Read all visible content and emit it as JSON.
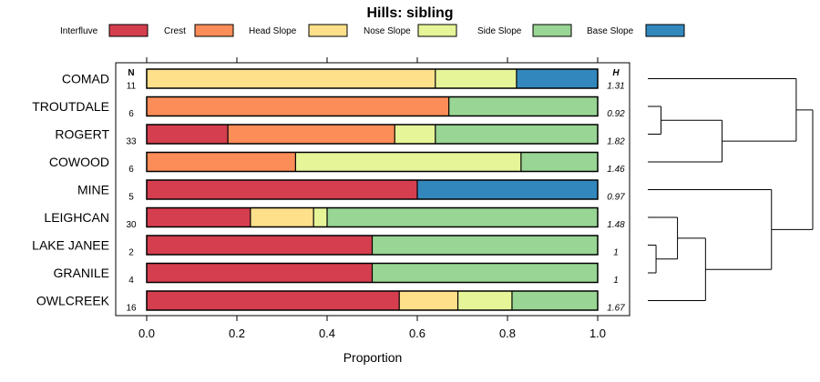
{
  "chart_data": {
    "type": "bar",
    "stacked": true,
    "orientation": "horizontal",
    "title": "Hills: sibling",
    "xlabel": "Proportion",
    "xlim": [
      0,
      1
    ],
    "xticks": [
      "0.0",
      "0.2",
      "0.4",
      "0.6",
      "0.8",
      "1.0"
    ],
    "n_header": "N",
    "h_header": "H",
    "legend": [
      {
        "name": "Interfluve",
        "color": "#d53e4f"
      },
      {
        "name": "Crest",
        "color": "#fc8d59"
      },
      {
        "name": "Head Slope",
        "color": "#fee08b"
      },
      {
        "name": "Nose Slope",
        "color": "#e6f598"
      },
      {
        "name": "Side Slope",
        "color": "#99d594"
      },
      {
        "name": "Base Slope",
        "color": "#3288bd"
      }
    ],
    "categories": [
      "COMAD",
      "TROUTDALE",
      "ROGERT",
      "COWOOD",
      "MINE",
      "LEIGHCAN",
      "LAKE JANEE",
      "GRANILE",
      "OWLCREEK"
    ],
    "n": [
      "11",
      "6",
      "33",
      "6",
      "5",
      "30",
      "2",
      "4",
      "16"
    ],
    "h": [
      "1.31",
      "0.92",
      "1.82",
      "1.46",
      "0.97",
      "1.48",
      "1",
      "1",
      "1.67"
    ],
    "series": [
      {
        "name": "Interfluve",
        "values": [
          0,
          0,
          0.18,
          0,
          0.6,
          0.23,
          0.5,
          0.5,
          0.56
        ]
      },
      {
        "name": "Crest",
        "values": [
          0,
          0.67,
          0.37,
          0.33,
          0,
          0,
          0,
          0,
          0
        ]
      },
      {
        "name": "Head Slope",
        "values": [
          0.64,
          0,
          0,
          0,
          0,
          0.14,
          0,
          0,
          0.13
        ]
      },
      {
        "name": "Nose Slope",
        "values": [
          0.18,
          0,
          0.09,
          0.5,
          0,
          0.03,
          0,
          0,
          0.12
        ]
      },
      {
        "name": "Side Slope",
        "values": [
          0,
          0.33,
          0.36,
          0.17,
          0,
          0.6,
          0.5,
          0.5,
          0.19
        ]
      },
      {
        "name": "Base Slope",
        "values": [
          0.18,
          0,
          0,
          0,
          0.4,
          0,
          0,
          0,
          0
        ]
      }
    ],
    "dendrogram_merges": [
      {
        "a": "LAKE JANEE",
        "b": "GRANILE",
        "height": 0.05
      },
      {
        "a": "TROUTDALE",
        "b": "ROGERT",
        "height": 0.08
      },
      {
        "a": "LEIGHCAN",
        "b": [
          "LAKE JANEE",
          "GRANILE"
        ],
        "height": 0.18
      },
      {
        "a": "OWLCREEK",
        "b": [
          "LEIGHCAN",
          "LAKE JANEE",
          "GRANILE"
        ],
        "height": 0.35
      },
      {
        "a": "COWOOD",
        "b": [
          "TROUTDALE",
          "ROGERT"
        ],
        "height": 0.45
      },
      {
        "a": "MINE",
        "b": [
          "LEIGHCAN",
          "LAKE JANEE",
          "GRANILE",
          "OWLCREEK"
        ],
        "height": 0.75
      },
      {
        "a": "COMAD",
        "b": [
          "TROUTDALE",
          "ROGERT",
          "COWOOD"
        ],
        "height": 0.9
      },
      {
        "a": [
          "COMAD",
          "TROUTDALE",
          "ROGERT",
          "COWOOD"
        ],
        "b": [
          "MINE",
          "LEIGHCAN",
          "LAKE JANEE",
          "GRANILE",
          "OWLCREEK"
        ],
        "height": 1.0
      }
    ]
  }
}
